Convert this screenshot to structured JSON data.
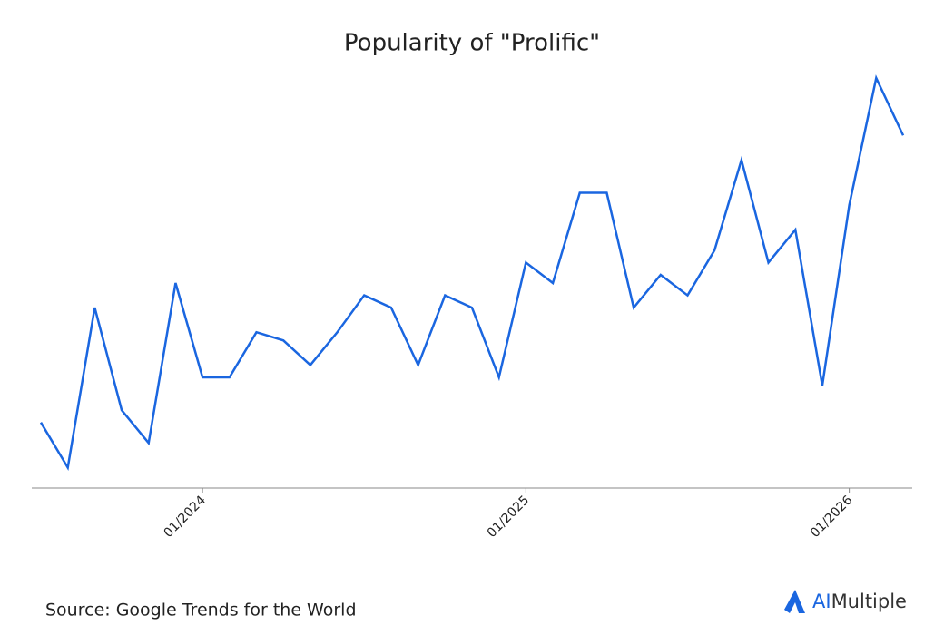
{
  "chart_data": {
    "type": "line",
    "title": "Popularity of \"Prolific\"",
    "source": "Source: Google Trends for the World",
    "brand": {
      "prefix": "AI",
      "name": "Multiple"
    },
    "x": [
      "07/2023",
      "08/2023",
      "09/2023",
      "10/2023",
      "11/2023",
      "12/2023",
      "01/2024",
      "02/2024",
      "03/2024",
      "04/2024",
      "05/2024",
      "06/2024",
      "07/2024",
      "08/2024",
      "09/2024",
      "10/2024",
      "11/2024",
      "12/2024",
      "01/2025",
      "02/2025",
      "03/2025",
      "04/2025",
      "05/2025",
      "06/2025",
      "07/2025",
      "08/2025",
      "09/2025",
      "10/2025",
      "11/2025",
      "12/2025",
      "01/2026",
      "02/2026",
      "03/2026"
    ],
    "series": [
      {
        "name": "Prolific",
        "color": "#1a66e0",
        "values": [
          16,
          5,
          44,
          19,
          11,
          50,
          27,
          27,
          38,
          36,
          30,
          38,
          47,
          44,
          30,
          47,
          44,
          27,
          55,
          50,
          72,
          72,
          44,
          52,
          47,
          58,
          80,
          55,
          63,
          25,
          69,
          100,
          86
        ]
      }
    ],
    "xticks": [
      "01/2024",
      "01/2025",
      "01/2026"
    ],
    "ylim": [
      0,
      100
    ]
  }
}
